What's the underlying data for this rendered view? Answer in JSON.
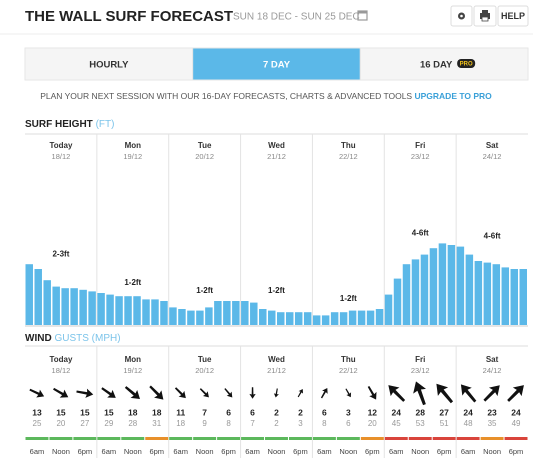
{
  "header": {
    "title": "THE WALL SURF FORECAST",
    "dates": "SUN 18 DEC - SUN 25 DEC",
    "help": "HELP"
  },
  "tabs": {
    "items": [
      "HOURLY",
      "7 DAY",
      "16 DAY"
    ],
    "active": 1,
    "badge": "PRO"
  },
  "promo": {
    "text": "PLAN YOUR NEXT SESSION WITH OUR 16-DAY FORECASTS, CHARTS & ADVANCED TOOLS",
    "link": "UPGRADE TO PRO"
  },
  "days": [
    {
      "name": "Today",
      "date": "18/12"
    },
    {
      "name": "Mon",
      "date": "19/12"
    },
    {
      "name": "Tue",
      "date": "20/12"
    },
    {
      "name": "Wed",
      "date": "21/12"
    },
    {
      "name": "Thu",
      "date": "22/12"
    },
    {
      "name": "Fri",
      "date": "23/12"
    },
    {
      "name": "Sat",
      "date": "24/12"
    }
  ],
  "surf": {
    "title": "SURF HEIGHT",
    "unit": "(FT)",
    "color": "#5bb8e8",
    "heights": [
      3.8,
      3.5,
      2.8,
      2.4,
      2.3,
      2.3,
      2.2,
      2.1,
      2.0,
      1.9,
      1.8,
      1.8,
      1.8,
      1.6,
      1.6,
      1.5,
      1.1,
      1.0,
      0.9,
      0.9,
      1.1,
      1.5,
      1.5,
      1.5,
      1.5,
      1.4,
      1.0,
      0.9,
      0.8,
      0.8,
      0.8,
      0.8,
      0.6,
      0.6,
      0.8,
      0.8,
      0.9,
      0.9,
      0.9,
      1.0,
      1.9,
      2.9,
      3.8,
      4.1,
      4.4,
      4.8,
      5.1,
      5.0,
      4.9,
      4.4,
      4.0,
      3.9,
      3.8,
      3.6,
      3.5,
      3.5
    ],
    "day_labels": [
      "2-3ft",
      "1-2ft",
      "1-2ft",
      "1-2ft",
      "1-2ft",
      "4-6ft",
      "4-6ft"
    ]
  },
  "wind": {
    "title": "WIND",
    "unit": "GUSTS (MPH)",
    "times": [
      "6am",
      "Noon",
      "6pm",
      "6am",
      "Noon",
      "6pm",
      "6am",
      "Noon",
      "6pm",
      "6am",
      "Noon",
      "6pm",
      "6am",
      "Noon",
      "6pm",
      "6am",
      "Noon",
      "6pm",
      "6am",
      "Noon",
      "6pm"
    ],
    "direction": [
      115,
      120,
      100,
      125,
      130,
      135,
      135,
      135,
      140,
      180,
      190,
      30,
      30,
      150,
      150,
      315,
      340,
      320,
      320,
      45,
      45
    ],
    "speed": [
      13,
      15,
      15,
      15,
      18,
      18,
      11,
      7,
      6,
      6,
      2,
      2,
      6,
      3,
      12,
      24,
      28,
      27,
      24,
      23,
      24
    ],
    "gust": [
      25,
      20,
      27,
      29,
      28,
      31,
      18,
      9,
      8,
      7,
      2,
      3,
      8,
      6,
      20,
      45,
      53,
      51,
      48,
      35,
      49
    ],
    "rating_color": [
      "#5cb85c",
      "#5cb85c",
      "#5cb85c",
      "#5cb85c",
      "#5cb85c",
      "#e8902a",
      "#5cb85c",
      "#5cb85c",
      "#5cb85c",
      "#5cb85c",
      "#5cb85c",
      "#5cb85c",
      "#5cb85c",
      "#5cb85c",
      "#e8902a",
      "#d9443b",
      "#d9443b",
      "#d9443b",
      "#d9443b",
      "#e8902a",
      "#d9443b"
    ]
  }
}
